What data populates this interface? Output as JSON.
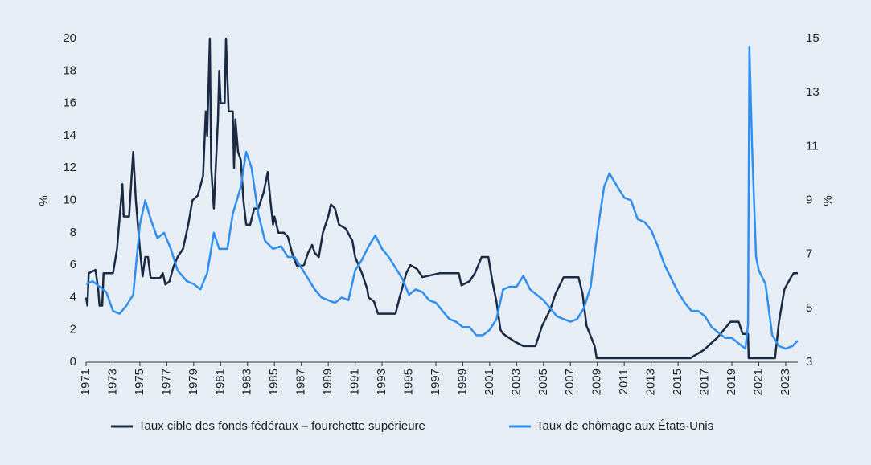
{
  "chart_data": {
    "type": "line",
    "y_label": "%",
    "y2_label": "%",
    "xlim": [
      1971,
      2023.9
    ],
    "xticks": [
      1971,
      1973,
      1975,
      1977,
      1979,
      1981,
      1983,
      1985,
      1987,
      1989,
      1991,
      1993,
      1995,
      1997,
      1999,
      2001,
      2003,
      2005,
      2007,
      2009,
      2011,
      2013,
      2015,
      2017,
      2019,
      2021,
      2023
    ],
    "ylim": [
      0,
      20
    ],
    "yticks": [
      0,
      2,
      4,
      6,
      8,
      10,
      12,
      14,
      16,
      18,
      20
    ],
    "y2lim": [
      3,
      15
    ],
    "y2ticks": [
      3,
      5,
      7,
      9,
      11,
      13,
      15
    ],
    "legend": "bottom",
    "series": [
      {
        "name": "Taux cible des fonds fédéraux – fourchette supérieure",
        "color": "#1b2a44",
        "x": [
          1971.0,
          1971.1,
          1971.2,
          1971.7,
          1971.9,
          1972.0,
          1972.2,
          1972.3,
          1973.0,
          1973.3,
          1973.6,
          1973.7,
          1973.8,
          1974.2,
          1974.5,
          1974.7,
          1975.0,
          1975.2,
          1975.4,
          1975.6,
          1975.8,
          1976.5,
          1976.7,
          1976.9,
          1977.2,
          1977.5,
          1977.8,
          1978.2,
          1978.6,
          1978.9,
          1979.3,
          1979.7,
          1979.9,
          1980.0,
          1980.2,
          1980.3,
          1980.5,
          1980.8,
          1980.9,
          1981.0,
          1981.3,
          1981.4,
          1981.6,
          1981.9,
          1982.0,
          1982.1,
          1982.3,
          1982.5,
          1982.7,
          1982.9,
          1983.2,
          1983.5,
          1983.8,
          1984.2,
          1984.5,
          1984.7,
          1984.9,
          1985.0,
          1985.3,
          1985.7,
          1986.0,
          1986.4,
          1986.7,
          1987.2,
          1987.5,
          1987.8,
          1988.0,
          1988.3,
          1988.6,
          1989.0,
          1989.2,
          1989.5,
          1989.8,
          1990.3,
          1990.8,
          1991.0,
          1991.5,
          1991.9,
          1992.0,
          1992.4,
          1992.7,
          1993.5,
          1994.0,
          1994.3,
          1994.8,
          1995.1,
          1995.6,
          1996.0,
          1997.3,
          1998.7,
          1998.9,
          1999.5,
          1999.9,
          2000.4,
          2000.9,
          2001.2,
          2001.5,
          2001.8,
          2002.0,
          2002.9,
          2003.5,
          2004.4,
          2004.9,
          2005.5,
          2005.9,
          2006.5,
          2007.6,
          2007.9,
          2008.2,
          2008.8,
          2008.95,
          2015.9,
          2016.9,
          2017.9,
          2018.9,
          2019.5,
          2019.8,
          2020.2,
          2020.25,
          2022.2,
          2022.5,
          2022.9,
          2023.4,
          2023.6,
          2023.9
        ],
        "values": [
          4.0,
          3.5,
          5.5,
          5.7,
          4.5,
          3.5,
          3.5,
          5.5,
          5.5,
          7,
          10,
          11,
          9,
          9,
          13,
          10,
          7,
          5.3,
          6.5,
          6.5,
          5.2,
          5.2,
          5.5,
          4.8,
          5,
          5.9,
          6.5,
          7,
          8.5,
          10,
          10.3,
          11.5,
          15.5,
          14,
          20,
          12,
          9.5,
          15,
          18,
          16,
          16,
          20,
          15.5,
          15.5,
          12,
          15,
          13,
          12.5,
          10,
          8.5,
          8.5,
          9.5,
          9.5,
          10.5,
          11.75,
          10,
          8.5,
          9,
          8,
          8,
          7.75,
          6.5,
          5.9,
          6,
          6.75,
          7.25,
          6.75,
          6.5,
          8,
          9,
          9.75,
          9.5,
          8.5,
          8.25,
          7.5,
          6.5,
          5.5,
          4.5,
          4,
          3.75,
          3,
          3,
          3,
          4,
          5.5,
          6,
          5.75,
          5.25,
          5.5,
          5.5,
          4.75,
          5,
          5.5,
          6.5,
          6.5,
          5,
          3.75,
          2,
          1.75,
          1.25,
          1,
          1,
          2.25,
          3.25,
          4.25,
          5.25,
          5.25,
          4.25,
          2.25,
          1,
          0.25,
          0.25,
          0.75,
          1.5,
          2.5,
          2.5,
          1.75,
          1.75,
          0.25,
          0.25,
          2.5,
          4.5,
          5.25,
          5.5,
          5.5
        ]
      },
      {
        "name": "Taux de chômage aux États-Unis",
        "color": "#2f8ff0",
        "axis": "y2",
        "x": [
          1971.0,
          1971.5,
          1972.0,
          1972.5,
          1973.0,
          1973.5,
          1974.0,
          1974.5,
          1975.0,
          1975.4,
          1975.8,
          1976.3,
          1976.8,
          1977.3,
          1977.8,
          1978.5,
          1979.0,
          1979.5,
          1980.0,
          1980.5,
          1980.9,
          1981.5,
          1981.9,
          1982.5,
          1982.9,
          1983.3,
          1983.8,
          1984.3,
          1984.9,
          1985.5,
          1986.0,
          1986.5,
          1987.0,
          1987.5,
          1988.0,
          1988.5,
          1989.0,
          1989.5,
          1990.0,
          1990.5,
          1991.0,
          1991.5,
          1992.0,
          1992.5,
          1993.0,
          1993.5,
          1994.0,
          1994.5,
          1995.0,
          1995.5,
          1996.0,
          1996.5,
          1997.0,
          1997.5,
          1998.0,
          1998.5,
          1999.0,
          1999.5,
          2000.0,
          2000.5,
          2001.0,
          2001.5,
          2002.0,
          2002.5,
          2003.0,
          2003.5,
          2004.0,
          2004.5,
          2005.0,
          2005.5,
          2006.0,
          2006.5,
          2007.0,
          2007.5,
          2008.0,
          2008.5,
          2009.0,
          2009.5,
          2009.9,
          2010.5,
          2011.0,
          2011.5,
          2012.0,
          2012.5,
          2013.0,
          2013.5,
          2014.0,
          2014.5,
          2015.0,
          2015.5,
          2016.0,
          2016.5,
          2017.0,
          2017.5,
          2018.0,
          2018.5,
          2019.0,
          2019.5,
          2020.0,
          2020.2,
          2020.3,
          2020.5,
          2020.8,
          2021.0,
          2021.5,
          2022.0,
          2022.5,
          2023.0,
          2023.5,
          2023.9
        ],
        "values": [
          5.9,
          6.0,
          5.8,
          5.6,
          4.9,
          4.8,
          5.1,
          5.5,
          8.1,
          9.0,
          8.3,
          7.6,
          7.8,
          7.2,
          6.4,
          6.0,
          5.9,
          5.7,
          6.3,
          7.8,
          7.2,
          7.2,
          8.5,
          9.5,
          10.8,
          10.2,
          8.5,
          7.5,
          7.2,
          7.3,
          6.9,
          6.9,
          6.5,
          6.1,
          5.7,
          5.4,
          5.3,
          5.2,
          5.4,
          5.3,
          6.4,
          6.8,
          7.3,
          7.7,
          7.2,
          6.9,
          6.5,
          6.1,
          5.5,
          5.7,
          5.6,
          5.3,
          5.2,
          4.9,
          4.6,
          4.5,
          4.3,
          4.3,
          4.0,
          4.0,
          4.2,
          4.6,
          5.7,
          5.8,
          5.8,
          6.2,
          5.7,
          5.5,
          5.3,
          5.0,
          4.7,
          4.6,
          4.5,
          4.6,
          5.0,
          5.8,
          7.8,
          9.5,
          10.0,
          9.5,
          9.1,
          9.0,
          8.3,
          8.2,
          7.9,
          7.3,
          6.6,
          6.1,
          5.6,
          5.2,
          4.9,
          4.9,
          4.7,
          4.3,
          4.1,
          3.9,
          3.9,
          3.7,
          3.5,
          4.4,
          14.7,
          11.0,
          6.9,
          6.4,
          5.9,
          4.0,
          3.6,
          3.5,
          3.6,
          3.8
        ]
      }
    ]
  }
}
